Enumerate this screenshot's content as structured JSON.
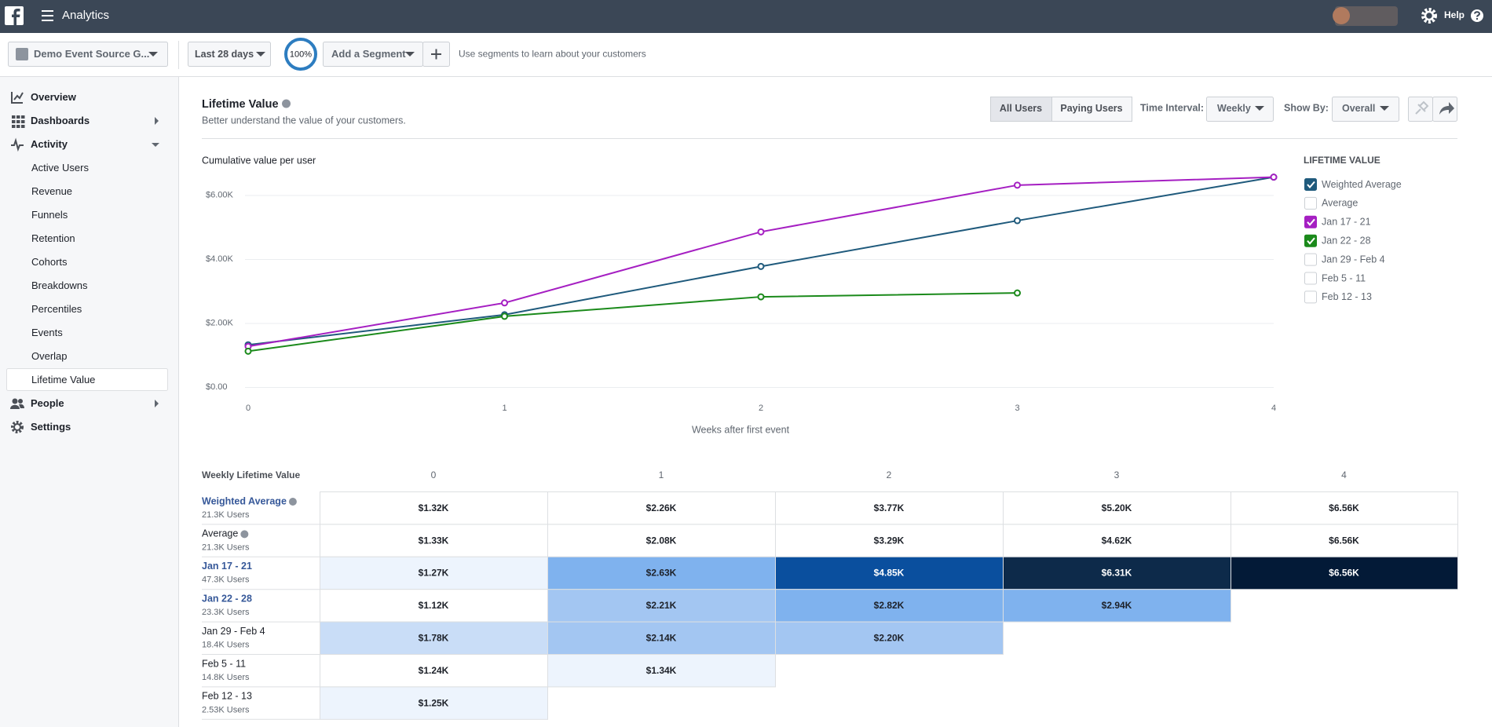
{
  "header": {
    "app": "Analytics",
    "help": "Help"
  },
  "toolbar": {
    "source": "Demo Event Source G...",
    "date_range": "Last 28 days",
    "completeness": "100%",
    "segment": "Add a Segment",
    "hint": "Use segments to learn about your customers"
  },
  "sidebar": {
    "items": [
      {
        "label": "Overview",
        "icon": "chart"
      },
      {
        "label": "Dashboards",
        "icon": "grid",
        "expand": "right"
      },
      {
        "label": "Activity",
        "icon": "pulse",
        "expand": "down",
        "children": [
          {
            "label": "Active Users"
          },
          {
            "label": "Revenue"
          },
          {
            "label": "Funnels"
          },
          {
            "label": "Retention"
          },
          {
            "label": "Cohorts"
          },
          {
            "label": "Breakdowns"
          },
          {
            "label": "Percentiles"
          },
          {
            "label": "Events"
          },
          {
            "label": "Overlap"
          },
          {
            "label": "Lifetime Value",
            "selected": true
          }
        ]
      },
      {
        "label": "People",
        "icon": "people",
        "expand": "right"
      },
      {
        "label": "Settings",
        "icon": "gear"
      }
    ]
  },
  "panel": {
    "title": "Lifetime Value",
    "subtitle": "Better understand the value of your customers.",
    "user_filter": [
      "All Users",
      "Paying Users"
    ],
    "time_interval_label": "Time Interval:",
    "time_interval": "Weekly",
    "show_by_label": "Show By:",
    "show_by": "Overall"
  },
  "chart_data": {
    "type": "line",
    "y_label": "Cumulative value per user",
    "x_label": "Weeks after first event",
    "legend_title": "LIFETIME VALUE",
    "x": [
      0,
      1,
      2,
      3,
      4
    ],
    "xlim": [
      0,
      4
    ],
    "xticks": [
      0,
      1,
      2,
      3,
      4
    ],
    "ylim": [
      0,
      6600
    ],
    "yticks": [
      {
        "value": 0,
        "label": "$0.00"
      },
      {
        "value": 2000,
        "label": "$2.00K"
      },
      {
        "value": 4000,
        "label": "$4.00K"
      },
      {
        "value": 6000,
        "label": "$6.00K"
      }
    ],
    "grid": true,
    "series": [
      {
        "name": "Weighted Average",
        "users": "21.3K Users",
        "checked": true,
        "info": true,
        "heatmap": false,
        "color": "#1f5a7c",
        "values": [
          1320,
          2260,
          3770,
          5200,
          6560
        ],
        "value_labels": [
          "$1.32K",
          "$2.26K",
          "$3.77K",
          "$5.20K",
          "$6.56K"
        ]
      },
      {
        "name": "Average",
        "users": "21.3K Users",
        "checked": false,
        "info": true,
        "heatmap": false,
        "values": [
          1330,
          2080,
          3290,
          4620,
          6560
        ],
        "value_labels": [
          "$1.33K",
          "$2.08K",
          "$3.29K",
          "$4.62K",
          "$6.56K"
        ]
      },
      {
        "name": "Jan 17 - 21",
        "users": "47.3K Users",
        "checked": true,
        "heatmap": true,
        "color": "#a51fc2",
        "values": [
          1270,
          2630,
          4850,
          6310,
          6560
        ],
        "value_labels": [
          "$1.27K",
          "$2.63K",
          "$4.85K",
          "$6.31K",
          "$6.56K"
        ]
      },
      {
        "name": "Jan 22 - 28",
        "users": "23.3K Users",
        "checked": true,
        "heatmap": true,
        "color": "#1b8a1b",
        "values": [
          1120,
          2210,
          2820,
          2940,
          null
        ],
        "value_labels": [
          "$1.12K",
          "$2.21K",
          "$2.82K",
          "$2.94K",
          null
        ]
      },
      {
        "name": "Jan 29 - Feb 4",
        "users": "18.4K Users",
        "checked": false,
        "heatmap": true,
        "values": [
          1780,
          2140,
          2200,
          null,
          null
        ],
        "value_labels": [
          "$1.78K",
          "$2.14K",
          "$2.20K",
          null,
          null
        ]
      },
      {
        "name": "Feb 5 - 11",
        "users": "14.8K Users",
        "checked": false,
        "heatmap": true,
        "values": [
          1240,
          1340,
          null,
          null,
          null
        ],
        "value_labels": [
          "$1.24K",
          "$1.34K",
          null,
          null,
          null
        ]
      },
      {
        "name": "Feb 12 - 13",
        "users": "2.53K Users",
        "checked": false,
        "heatmap": true,
        "values": [
          1250,
          null,
          null,
          null,
          null
        ],
        "value_labels": [
          "$1.25K",
          null,
          null,
          null,
          null
        ]
      }
    ]
  },
  "table": {
    "title": "Weekly Lifetime Value"
  }
}
